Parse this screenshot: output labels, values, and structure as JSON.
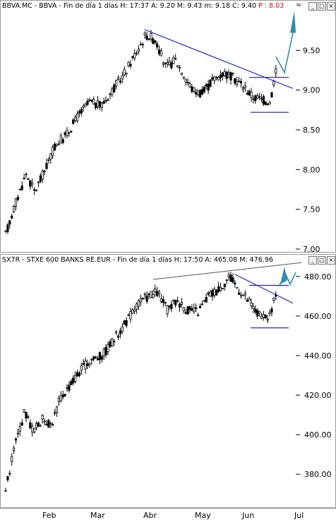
{
  "chart_data": [
    {
      "type": "candlestick",
      "title_prefix": "BBVA.MC - BBVA - Fin de día 1 días",
      "title_hl": "H: 17:37",
      "title_mid": "A: 9.20  M: 9.43  m: 9.18  C: 9.40",
      "title_last": "P : 8.03",
      "ylim": [
        7.0,
        10.0
      ],
      "yticks": [
        "9.50",
        "9.00",
        "8.50",
        "8.00",
        "7.50",
        "7.00"
      ],
      "ytick_values": [
        9.5,
        9.0,
        8.5,
        8.0,
        7.5,
        7.0
      ],
      "trendline": {
        "from": [
          204,
          9.76
        ],
        "to": [
          414,
          9.02
        ]
      },
      "support": {
        "from": [
          354,
          8.72
        ],
        "to": [
          408,
          8.72
        ]
      },
      "resistance": {
        "from": [
          352,
          9.16
        ],
        "to": [
          408,
          9.16
        ]
      },
      "anchors": [
        [
          7,
          7.18
        ],
        [
          20,
          7.55
        ],
        [
          36,
          7.95
        ],
        [
          48,
          7.72
        ],
        [
          62,
          7.98
        ],
        [
          78,
          8.32
        ],
        [
          92,
          8.42
        ],
        [
          110,
          8.68
        ],
        [
          126,
          8.85
        ],
        [
          142,
          8.8
        ],
        [
          160,
          9.02
        ],
        [
          176,
          9.22
        ],
        [
          192,
          9.48
        ],
        [
          206,
          9.7
        ],
        [
          220,
          9.62
        ],
        [
          234,
          9.28
        ],
        [
          248,
          9.38
        ],
        [
          260,
          9.18
        ],
        [
          272,
          9.0
        ],
        [
          286,
          8.96
        ],
        [
          300,
          9.12
        ],
        [
          316,
          9.22
        ],
        [
          330,
          9.15
        ],
        [
          344,
          9.05
        ],
        [
          356,
          8.92
        ],
        [
          370,
          8.88
        ],
        [
          382,
          8.85
        ],
        [
          392,
          9.38
        ]
      ]
    },
    {
      "type": "candlestick",
      "title_prefix": "SX7R - STXE 600 BANKS RE.EUR - Fin de día 1 días",
      "title_hl": "H: 17:50",
      "title_mid": "A: 465.08  M: 476.96",
      "ylim": [
        364,
        486
      ],
      "yticks": [
        "480.00",
        "460.00",
        "440.00",
        "420.00",
        "400.00",
        "380.00"
      ],
      "ytick_values": [
        480,
        460,
        440,
        420,
        400,
        380
      ],
      "trendline": {
        "from": [
          332,
          481
        ],
        "to": [
          414,
          466.5
        ]
      },
      "upper_line": {
        "from": [
          216,
          478.5
        ],
        "to": [
          426,
          487
        ]
      },
      "support": {
        "from": [
          354,
          454
        ],
        "to": [
          408,
          454
        ]
      },
      "resistance": {
        "from": [
          352,
          475.5
        ],
        "to": [
          408,
          475.5
        ]
      },
      "anchors": [
        [
          7,
          372
        ],
        [
          18,
          392
        ],
        [
          34,
          412
        ],
        [
          46,
          402
        ],
        [
          60,
          408
        ],
        [
          72,
          405
        ],
        [
          84,
          418
        ],
        [
          98,
          425
        ],
        [
          112,
          432
        ],
        [
          128,
          438
        ],
        [
          144,
          440
        ],
        [
          160,
          448
        ],
        [
          176,
          456
        ],
        [
          192,
          465
        ],
        [
          208,
          470
        ],
        [
          222,
          472
        ],
        [
          236,
          463
        ],
        [
          250,
          468
        ],
        [
          264,
          463
        ],
        [
          280,
          462
        ],
        [
          294,
          470
        ],
        [
          310,
          474
        ],
        [
          324,
          480
        ],
        [
          336,
          474
        ],
        [
          350,
          468
        ],
        [
          362,
          462
        ],
        [
          374,
          458
        ],
        [
          384,
          462
        ],
        [
          392,
          476
        ]
      ]
    }
  ],
  "xaxis": {
    "labels": [
      "Feb",
      "Mar",
      "Abr",
      "May",
      "Jun",
      "Jul"
    ]
  },
  "colors": {
    "candle": "#000000",
    "trend": "#1018c8",
    "arrow": "#2f8fa8",
    "title_hl": "#d0101a"
  },
  "window": {
    "minimize": "_",
    "maximize": "□",
    "close": "×"
  }
}
